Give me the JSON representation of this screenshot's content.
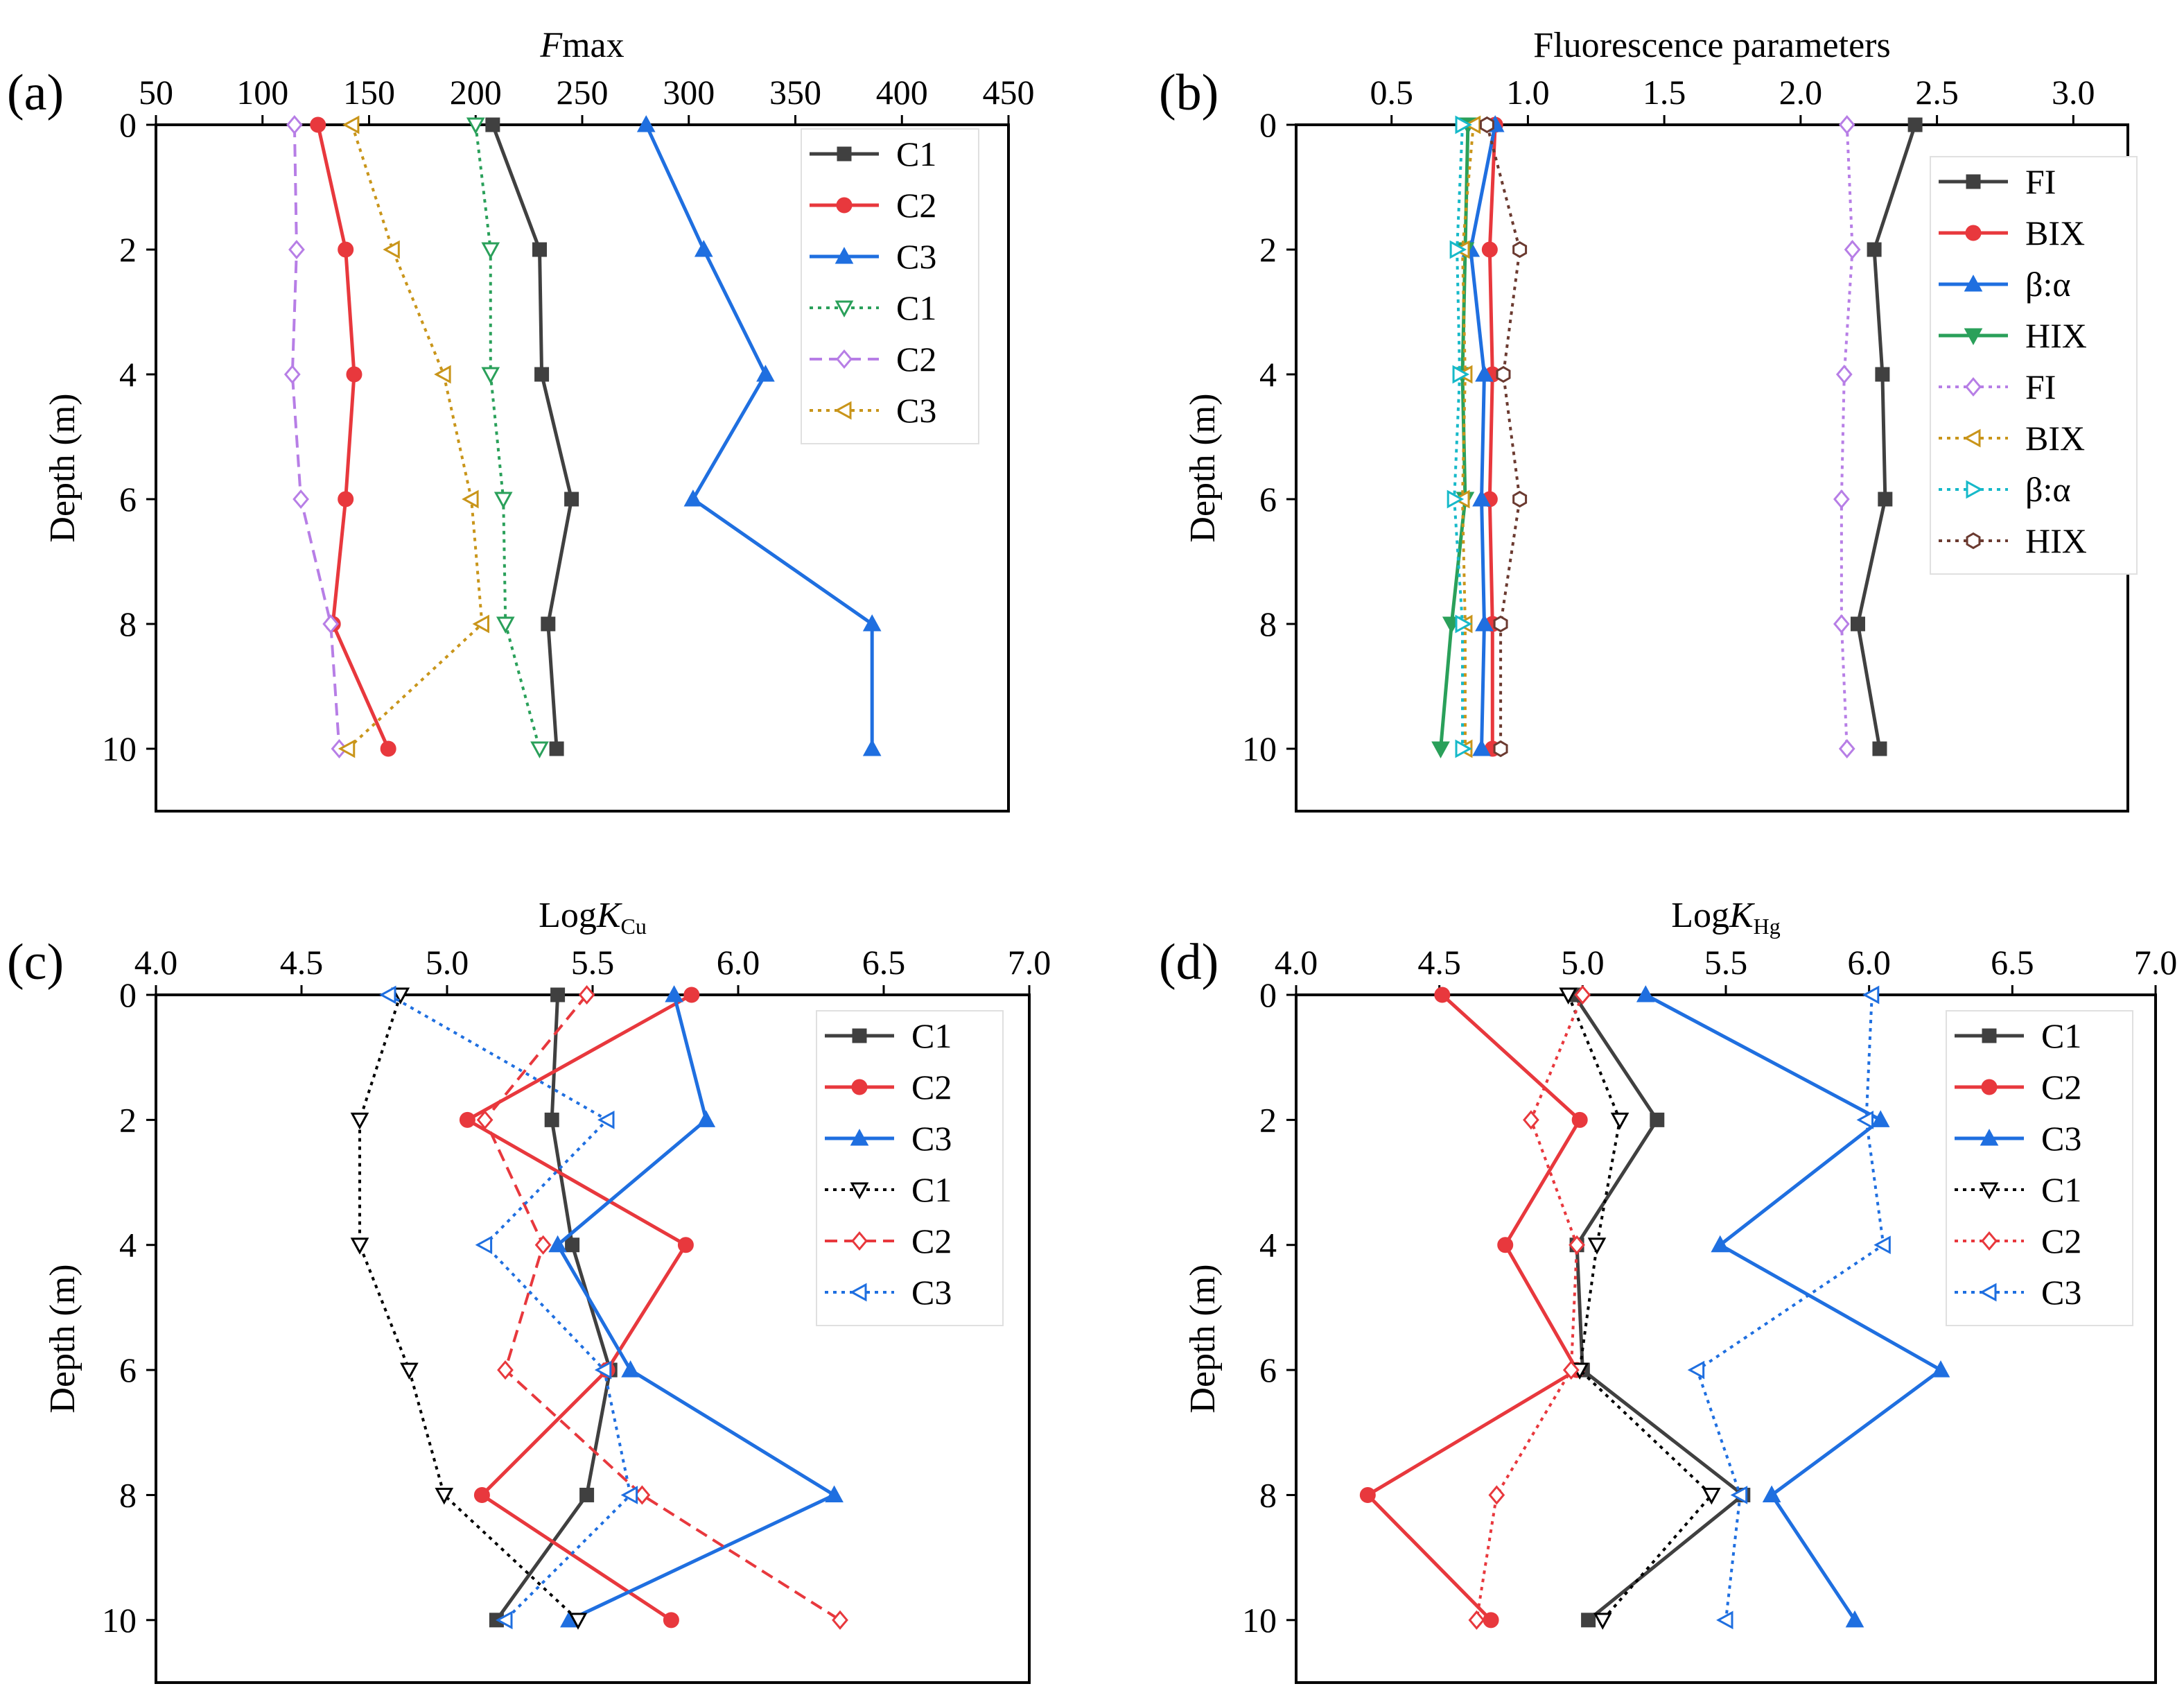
{
  "chart_data": [
    {
      "id": "a",
      "type": "line",
      "panel_label": "(a)",
      "title": "",
      "xlabel": "Fmax",
      "xlabel_italic_prefix": "F",
      "xlabel_rest": "max",
      "ylabel": "Depth (m)",
      "xlim": [
        50,
        450
      ],
      "ylim": [
        0,
        11
      ],
      "xticks": [
        50,
        100,
        150,
        200,
        250,
        300,
        350,
        400,
        450
      ],
      "xtick_labels": [
        "50",
        "100",
        "150",
        "200",
        "250",
        "300",
        "350",
        "400",
        "450"
      ],
      "yticks": [
        0,
        2,
        4,
        6,
        8,
        10
      ],
      "ytick_labels": [
        "0",
        "2",
        "4",
        "6",
        "8",
        "10"
      ],
      "grid": false,
      "legend_position": "top-right",
      "y_axis_inverted": true,
      "series": [
        {
          "name": "C1",
          "color": "#404040",
          "dash": "solid",
          "marker": "square",
          "filled": true,
          "x": [
            208,
            230,
            231,
            245,
            234,
            238
          ],
          "y": [
            0,
            2,
            4,
            6,
            8,
            10
          ]
        },
        {
          "name": "C2",
          "color": "#e8383d",
          "dash": "solid",
          "marker": "circle",
          "filled": true,
          "x": [
            126,
            139,
            143,
            139,
            133,
            159
          ],
          "y": [
            0,
            2,
            4,
            6,
            8,
            10
          ]
        },
        {
          "name": "C3",
          "color": "#1f6fe0",
          "dash": "solid",
          "marker": "triangle-up",
          "filled": true,
          "x": [
            280,
            307,
            336,
            302,
            386,
            386
          ],
          "y": [
            0,
            2,
            4,
            6,
            8,
            10
          ]
        },
        {
          "name": "C1",
          "color": "#2aa05a",
          "dash": "dot",
          "marker": "triangle-down",
          "filled": false,
          "x": [
            200,
            207,
            207,
            213,
            214,
            230
          ],
          "y": [
            0,
            2,
            4,
            6,
            8,
            10
          ]
        },
        {
          "name": "C2",
          "color": "#b77ee6",
          "dash": "dash",
          "marker": "diamond",
          "filled": false,
          "x": [
            115,
            116,
            114,
            118,
            132,
            136
          ],
          "y": [
            0,
            2,
            4,
            6,
            8,
            10
          ]
        },
        {
          "name": "C3",
          "color": "#c9951a",
          "dash": "dot",
          "marker": "triangle-left",
          "filled": false,
          "x": [
            142,
            161,
            185,
            198,
            203,
            140
          ],
          "y": [
            0,
            2,
            4,
            6,
            8,
            10
          ]
        }
      ]
    },
    {
      "id": "b",
      "type": "line",
      "panel_label": "(b)",
      "title": "",
      "xlabel": "Fluorescence parameters",
      "ylabel": "Depth (m)",
      "xlim": [
        0.15,
        3.2
      ],
      "ylim": [
        0,
        11
      ],
      "xticks": [
        0.5,
        1.0,
        1.5,
        2.0,
        2.5,
        3.0
      ],
      "xtick_labels": [
        "0.5",
        "1.0",
        "1.5",
        "2.0",
        "2.5",
        "3.0"
      ],
      "yticks": [
        0,
        2,
        4,
        6,
        8,
        10
      ],
      "ytick_labels": [
        "0",
        "2",
        "4",
        "6",
        "8",
        "10"
      ],
      "grid": false,
      "legend_position": "right",
      "y_axis_inverted": true,
      "series": [
        {
          "name": "FI",
          "color": "#404040",
          "dash": "solid",
          "marker": "square",
          "filled": true,
          "x": [
            2.42,
            2.27,
            2.3,
            2.31,
            2.21,
            2.29
          ],
          "y": [
            0,
            2,
            4,
            6,
            8,
            10
          ]
        },
        {
          "name": "BIX",
          "color": "#e8383d",
          "dash": "solid",
          "marker": "circle",
          "filled": true,
          "x": [
            0.88,
            0.86,
            0.87,
            0.86,
            0.87,
            0.87
          ],
          "y": [
            0,
            2,
            4,
            6,
            8,
            10
          ]
        },
        {
          "name": "β:α",
          "color": "#1f6fe0",
          "dash": "solid",
          "marker": "triangle-up",
          "filled": true,
          "x": [
            0.88,
            0.79,
            0.84,
            0.83,
            0.84,
            0.83
          ],
          "y": [
            0,
            2,
            4,
            6,
            8,
            10
          ]
        },
        {
          "name": "HIX",
          "color": "#2aa05a",
          "dash": "solid",
          "marker": "triangle-down",
          "filled": true,
          "x": [
            0.78,
            0.77,
            0.76,
            0.77,
            0.72,
            0.68
          ],
          "y": [
            0,
            2,
            4,
            6,
            8,
            10
          ]
        },
        {
          "name": "FI",
          "color": "#b77ee6",
          "dash": "dot",
          "marker": "diamond",
          "filled": false,
          "x": [
            2.17,
            2.19,
            2.16,
            2.15,
            2.15,
            2.17
          ],
          "y": [
            0,
            2,
            4,
            6,
            8,
            10
          ]
        },
        {
          "name": "BIX",
          "color": "#c9951a",
          "dash": "dot",
          "marker": "triangle-left",
          "filled": false,
          "x": [
            0.8,
            0.76,
            0.77,
            0.76,
            0.77,
            0.77
          ],
          "y": [
            0,
            2,
            4,
            6,
            8,
            10
          ]
        },
        {
          "name": "β:α",
          "color": "#16b9c9",
          "dash": "dot",
          "marker": "triangle-right",
          "filled": false,
          "x": [
            0.76,
            0.74,
            0.75,
            0.73,
            0.76,
            0.76
          ],
          "y": [
            0,
            2,
            4,
            6,
            8,
            10
          ]
        },
        {
          "name": "HIX",
          "color": "#6b3a30",
          "dash": "dot",
          "marker": "hexagon",
          "filled": false,
          "x": [
            0.85,
            0.97,
            0.91,
            0.97,
            0.9,
            0.9
          ],
          "y": [
            0,
            2,
            4,
            6,
            8,
            10
          ]
        }
      ]
    },
    {
      "id": "c",
      "type": "line",
      "panel_label": "(c)",
      "title": "",
      "xlabel": "LogKCu",
      "xlabel_prefix": "Log",
      "xlabel_italic": "K",
      "xlabel_sub": "Cu",
      "ylabel": "Depth (m)",
      "xlim": [
        4.0,
        7.0
      ],
      "ylim": [
        0,
        11
      ],
      "xticks": [
        4.0,
        4.5,
        5.0,
        5.5,
        6.0,
        6.5,
        7.0
      ],
      "xtick_labels": [
        "4.0",
        "4.5",
        "5.0",
        "5.5",
        "6.0",
        "6.5",
        "7.0"
      ],
      "yticks": [
        0,
        2,
        4,
        6,
        8,
        10
      ],
      "ytick_labels": [
        "0",
        "2",
        "4",
        "6",
        "8",
        "10"
      ],
      "grid": false,
      "legend_position": "top-right",
      "y_axis_inverted": true,
      "series": [
        {
          "name": "C1",
          "color": "#404040",
          "dash": "solid",
          "marker": "square",
          "filled": true,
          "x": [
            5.38,
            5.36,
            5.43,
            5.56,
            5.48,
            5.17
          ],
          "y": [
            0,
            2,
            4,
            6,
            8,
            10
          ]
        },
        {
          "name": "C2",
          "color": "#e8383d",
          "dash": "solid",
          "marker": "circle",
          "filled": true,
          "x": [
            5.84,
            5.07,
            5.82,
            5.55,
            5.12,
            5.77
          ],
          "y": [
            0,
            2,
            4,
            6,
            8,
            10
          ]
        },
        {
          "name": "C3",
          "color": "#1f6fe0",
          "dash": "solid",
          "marker": "triangle-up",
          "filled": true,
          "x": [
            5.78,
            5.89,
            5.38,
            5.63,
            6.33,
            5.42
          ],
          "y": [
            0,
            2,
            4,
            6,
            8,
            10
          ]
        },
        {
          "name": "C1",
          "color": "#000000",
          "dash": "dot",
          "marker": "triangle-down",
          "filled": false,
          "x": [
            4.84,
            4.7,
            4.7,
            4.87,
            4.99,
            5.45
          ],
          "y": [
            0,
            2,
            4,
            6,
            8,
            10
          ]
        },
        {
          "name": "C2",
          "color": "#e8383d",
          "dash": "dash",
          "marker": "diamond",
          "filled": false,
          "x": [
            5.48,
            5.13,
            5.33,
            5.2,
            5.67,
            6.35
          ],
          "y": [
            0,
            2,
            4,
            6,
            8,
            10
          ]
        },
        {
          "name": "C3",
          "color": "#1f6fe0",
          "dash": "dot",
          "marker": "triangle-left",
          "filled": false,
          "x": [
            4.8,
            5.55,
            5.13,
            5.54,
            5.63,
            5.2
          ],
          "y": [
            0,
            2,
            4,
            6,
            8,
            10
          ]
        }
      ]
    },
    {
      "id": "d",
      "type": "line",
      "panel_label": "(d)",
      "title": "",
      "xlabel": "LogKHg",
      "xlabel_prefix": "Log",
      "xlabel_italic": "K",
      "xlabel_sub": "Hg",
      "ylabel": "Depth (m)",
      "xlim": [
        4.0,
        7.0
      ],
      "ylim": [
        0,
        11
      ],
      "xticks": [
        4.0,
        4.5,
        5.0,
        5.5,
        6.0,
        6.5,
        7.0
      ],
      "xtick_labels": [
        "4.0",
        "4.5",
        "5.0",
        "5.5",
        "6.0",
        "6.5",
        "7.0"
      ],
      "yticks": [
        0,
        2,
        4,
        6,
        8,
        10
      ],
      "ytick_labels": [
        "0",
        "2",
        "4",
        "6",
        "8",
        "10"
      ],
      "grid": false,
      "legend_position": "top-right",
      "y_axis_inverted": true,
      "series": [
        {
          "name": "C1",
          "color": "#404040",
          "dash": "solid",
          "marker": "square",
          "filled": true,
          "x": [
            4.97,
            5.26,
            4.98,
            5.0,
            5.56,
            5.02
          ],
          "y": [
            0,
            2,
            4,
            6,
            8,
            10
          ]
        },
        {
          "name": "C2",
          "color": "#e8383d",
          "dash": "solid",
          "marker": "circle",
          "filled": true,
          "x": [
            4.51,
            4.99,
            4.73,
            4.98,
            4.25,
            4.68
          ],
          "y": [
            0,
            2,
            4,
            6,
            8,
            10
          ]
        },
        {
          "name": "C3",
          "color": "#1f6fe0",
          "dash": "solid",
          "marker": "triangle-up",
          "filled": true,
          "x": [
            5.22,
            6.04,
            5.48,
            6.25,
            5.66,
            5.95
          ],
          "y": [
            0,
            2,
            4,
            6,
            8,
            10
          ]
        },
        {
          "name": "C1",
          "color": "#000000",
          "dash": "dot",
          "marker": "triangle-down",
          "filled": false,
          "x": [
            4.95,
            5.13,
            5.05,
            4.99,
            5.45,
            5.07
          ],
          "y": [
            0,
            2,
            4,
            6,
            8,
            10
          ]
        },
        {
          "name": "C2",
          "color": "#e8383d",
          "dash": "dot",
          "marker": "diamond",
          "filled": false,
          "x": [
            5.0,
            4.82,
            4.98,
            4.96,
            4.7,
            4.63
          ],
          "y": [
            0,
            2,
            4,
            6,
            8,
            10
          ]
        },
        {
          "name": "C3",
          "color": "#1f6fe0",
          "dash": "dot",
          "marker": "triangle-left",
          "filled": false,
          "x": [
            6.01,
            5.99,
            6.05,
            5.4,
            5.55,
            5.5
          ],
          "y": [
            0,
            2,
            4,
            6,
            8,
            10
          ]
        }
      ]
    }
  ]
}
